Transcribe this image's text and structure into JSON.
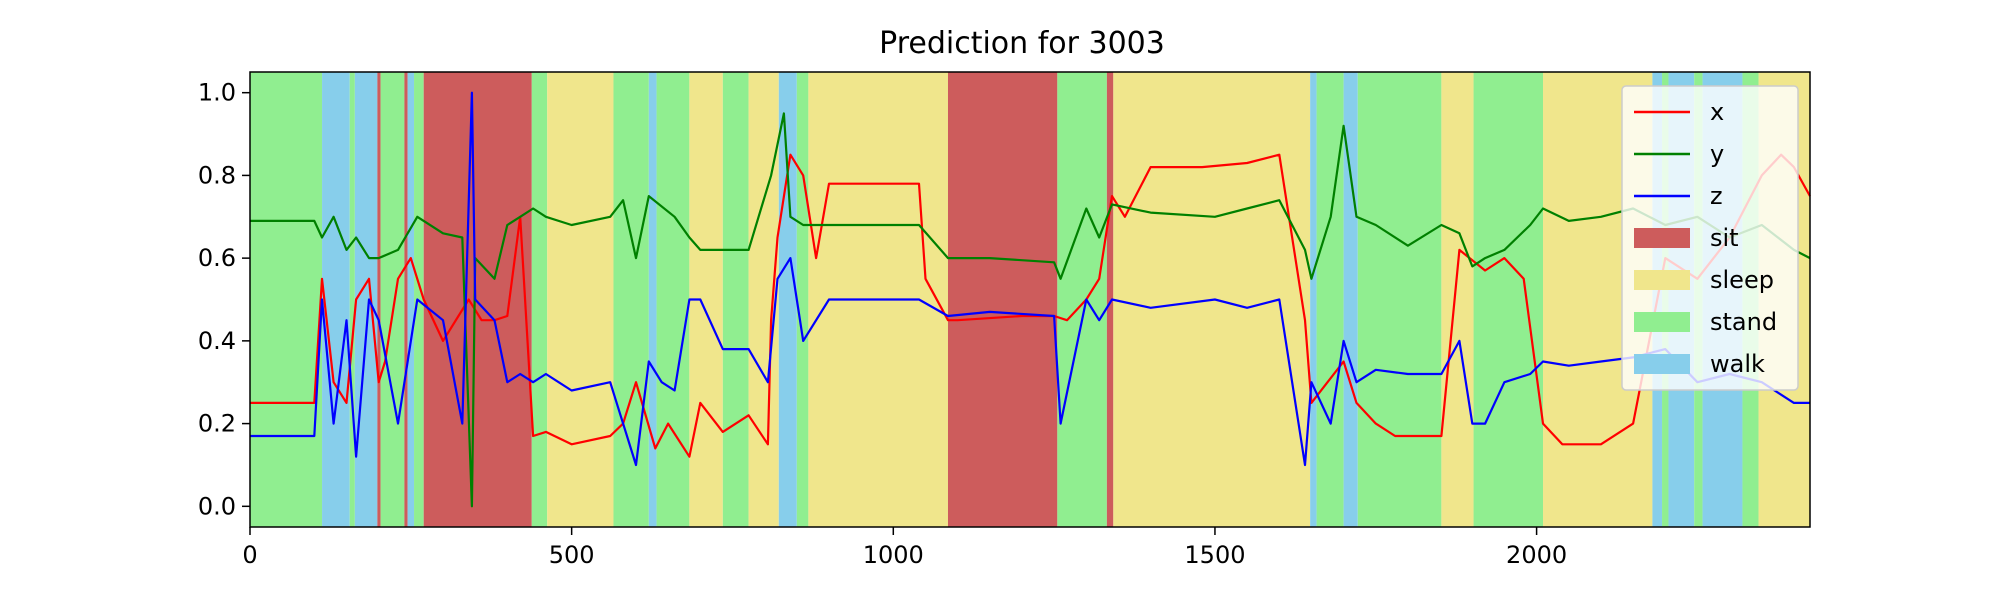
{
  "chart_data": {
    "type": "line",
    "title": "Prediction for 3003",
    "xlabel": "",
    "ylabel": "",
    "xlim": [
      0,
      2425
    ],
    "ylim": [
      -0.05,
      1.05
    ],
    "x_ticks": [
      0,
      500,
      1000,
      1500,
      2000
    ],
    "y_ticks": [
      0.0,
      0.2,
      0.4,
      0.6,
      0.8,
      1.0
    ],
    "x_tick_labels": [
      "0",
      "500",
      "1000",
      "1500",
      "2000"
    ],
    "y_tick_labels": [
      "0.0",
      "0.2",
      "0.4",
      "0.6",
      "0.8",
      "1.0"
    ],
    "grid": false,
    "legend_position": "top-right",
    "legend": [
      "x",
      "y",
      "z",
      "sit",
      "sleep",
      "stand",
      "walk"
    ],
    "class_colors": {
      "sit": "#cd5c5c",
      "sleep": "#f0e68c",
      "stand": "#90ee90",
      "walk": "#87ceeb"
    },
    "segments": [
      {
        "start": 0,
        "end": 112,
        "label": "stand"
      },
      {
        "start": 112,
        "end": 155,
        "label": "walk"
      },
      {
        "start": 155,
        "end": 163,
        "label": "stand"
      },
      {
        "start": 163,
        "end": 198,
        "label": "walk"
      },
      {
        "start": 198,
        "end": 203,
        "label": "sit"
      },
      {
        "start": 203,
        "end": 240,
        "label": "stand"
      },
      {
        "start": 240,
        "end": 245,
        "label": "sit"
      },
      {
        "start": 245,
        "end": 255,
        "label": "walk"
      },
      {
        "start": 255,
        "end": 270,
        "label": "stand"
      },
      {
        "start": 270,
        "end": 438,
        "label": "sit"
      },
      {
        "start": 438,
        "end": 462,
        "label": "stand"
      },
      {
        "start": 462,
        "end": 565,
        "label": "sleep"
      },
      {
        "start": 565,
        "end": 620,
        "label": "stand"
      },
      {
        "start": 620,
        "end": 632,
        "label": "walk"
      },
      {
        "start": 632,
        "end": 683,
        "label": "stand"
      },
      {
        "start": 683,
        "end": 735,
        "label": "sleep"
      },
      {
        "start": 735,
        "end": 775,
        "label": "stand"
      },
      {
        "start": 775,
        "end": 822,
        "label": "sleep"
      },
      {
        "start": 822,
        "end": 850,
        "label": "walk"
      },
      {
        "start": 850,
        "end": 868,
        "label": "stand"
      },
      {
        "start": 868,
        "end": 1085,
        "label": "sleep"
      },
      {
        "start": 1085,
        "end": 1255,
        "label": "sit"
      },
      {
        "start": 1255,
        "end": 1332,
        "label": "stand"
      },
      {
        "start": 1332,
        "end": 1342,
        "label": "sit"
      },
      {
        "start": 1342,
        "end": 1648,
        "label": "sleep"
      },
      {
        "start": 1648,
        "end": 1658,
        "label": "walk"
      },
      {
        "start": 1658,
        "end": 1700,
        "label": "stand"
      },
      {
        "start": 1700,
        "end": 1722,
        "label": "walk"
      },
      {
        "start": 1722,
        "end": 1852,
        "label": "stand"
      },
      {
        "start": 1852,
        "end": 1902,
        "label": "sleep"
      },
      {
        "start": 1902,
        "end": 2010,
        "label": "stand"
      },
      {
        "start": 2010,
        "end": 2180,
        "label": "sleep"
      },
      {
        "start": 2180,
        "end": 2195,
        "label": "walk"
      },
      {
        "start": 2195,
        "end": 2205,
        "label": "stand"
      },
      {
        "start": 2205,
        "end": 2245,
        "label": "walk"
      },
      {
        "start": 2245,
        "end": 2258,
        "label": "stand"
      },
      {
        "start": 2258,
        "end": 2320,
        "label": "walk"
      },
      {
        "start": 2320,
        "end": 2345,
        "label": "stand"
      },
      {
        "start": 2345,
        "end": 2425,
        "label": "sleep"
      }
    ],
    "series": [
      {
        "name": "x",
        "color": "#ff0000",
        "x": [
          0,
          100,
          112,
          130,
          150,
          165,
          185,
          200,
          210,
          230,
          250,
          270,
          300,
          340,
          360,
          380,
          400,
          420,
          440,
          460,
          500,
          560,
          580,
          600,
          630,
          650,
          683,
          700,
          735,
          775,
          805,
          810,
          820,
          840,
          860,
          880,
          900,
          960,
          1040,
          1050,
          1085,
          1100,
          1200,
          1250,
          1270,
          1300,
          1320,
          1340,
          1360,
          1400,
          1480,
          1550,
          1600,
          1640,
          1650,
          1700,
          1720,
          1750,
          1780,
          1852,
          1880,
          1920,
          1950,
          1980,
          2010,
          2040,
          2100,
          2150,
          2200,
          2250,
          2300,
          2350,
          2380,
          2400,
          2425
        ],
        "values": [
          0.25,
          0.25,
          0.55,
          0.3,
          0.25,
          0.5,
          0.55,
          0.3,
          0.35,
          0.55,
          0.6,
          0.5,
          0.4,
          0.5,
          0.45,
          0.45,
          0.46,
          0.7,
          0.17,
          0.18,
          0.15,
          0.17,
          0.2,
          0.3,
          0.14,
          0.2,
          0.12,
          0.25,
          0.18,
          0.22,
          0.15,
          0.45,
          0.65,
          0.85,
          0.8,
          0.6,
          0.78,
          0.78,
          0.78,
          0.55,
          0.45,
          0.45,
          0.46,
          0.46,
          0.45,
          0.5,
          0.55,
          0.75,
          0.7,
          0.82,
          0.82,
          0.83,
          0.85,
          0.45,
          0.25,
          0.35,
          0.25,
          0.2,
          0.17,
          0.17,
          0.62,
          0.57,
          0.6,
          0.55,
          0.2,
          0.15,
          0.15,
          0.2,
          0.6,
          0.55,
          0.65,
          0.8,
          0.85,
          0.82,
          0.75
        ]
      },
      {
        "name": "y",
        "color": "#008000",
        "x": [
          0,
          100,
          112,
          130,
          150,
          165,
          185,
          200,
          230,
          260,
          300,
          330,
          345,
          350,
          380,
          400,
          420,
          440,
          460,
          500,
          560,
          580,
          600,
          620,
          660,
          683,
          700,
          735,
          775,
          810,
          830,
          840,
          860,
          900,
          960,
          1040,
          1085,
          1150,
          1250,
          1260,
          1300,
          1320,
          1340,
          1400,
          1500,
          1550,
          1600,
          1640,
          1650,
          1680,
          1700,
          1720,
          1750,
          1800,
          1852,
          1880,
          1900,
          1920,
          1950,
          1990,
          2010,
          2050,
          2100,
          2150,
          2200,
          2250,
          2300,
          2350,
          2400,
          2425
        ],
        "values": [
          0.69,
          0.69,
          0.65,
          0.7,
          0.62,
          0.65,
          0.6,
          0.6,
          0.62,
          0.7,
          0.66,
          0.65,
          0.0,
          0.6,
          0.55,
          0.68,
          0.7,
          0.72,
          0.7,
          0.68,
          0.7,
          0.74,
          0.6,
          0.75,
          0.7,
          0.65,
          0.62,
          0.62,
          0.62,
          0.8,
          0.95,
          0.7,
          0.68,
          0.68,
          0.68,
          0.68,
          0.6,
          0.6,
          0.59,
          0.55,
          0.72,
          0.65,
          0.73,
          0.71,
          0.7,
          0.72,
          0.74,
          0.62,
          0.55,
          0.7,
          0.92,
          0.7,
          0.68,
          0.63,
          0.68,
          0.66,
          0.58,
          0.6,
          0.62,
          0.68,
          0.72,
          0.69,
          0.7,
          0.72,
          0.68,
          0.7,
          0.65,
          0.68,
          0.62,
          0.6
        ]
      },
      {
        "name": "z",
        "color": "#0000ff",
        "x": [
          0,
          100,
          112,
          130,
          150,
          165,
          185,
          200,
          230,
          260,
          300,
          330,
          345,
          350,
          380,
          400,
          420,
          440,
          460,
          500,
          560,
          580,
          600,
          620,
          640,
          660,
          683,
          700,
          735,
          775,
          805,
          820,
          840,
          860,
          900,
          960,
          1040,
          1085,
          1150,
          1250,
          1260,
          1300,
          1320,
          1340,
          1400,
          1500,
          1550,
          1600,
          1640,
          1650,
          1680,
          1700,
          1720,
          1750,
          1800,
          1852,
          1880,
          1900,
          1920,
          1950,
          1990,
          2010,
          2050,
          2100,
          2150,
          2200,
          2250,
          2300,
          2350,
          2400,
          2425
        ],
        "values": [
          0.17,
          0.17,
          0.5,
          0.2,
          0.45,
          0.12,
          0.5,
          0.45,
          0.2,
          0.5,
          0.45,
          0.2,
          1.0,
          0.5,
          0.45,
          0.3,
          0.32,
          0.3,
          0.32,
          0.28,
          0.3,
          0.2,
          0.1,
          0.35,
          0.3,
          0.28,
          0.5,
          0.5,
          0.38,
          0.38,
          0.3,
          0.55,
          0.6,
          0.4,
          0.5,
          0.5,
          0.5,
          0.46,
          0.47,
          0.46,
          0.2,
          0.5,
          0.45,
          0.5,
          0.48,
          0.5,
          0.48,
          0.5,
          0.1,
          0.3,
          0.2,
          0.4,
          0.3,
          0.33,
          0.32,
          0.32,
          0.4,
          0.2,
          0.2,
          0.3,
          0.32,
          0.35,
          0.34,
          0.35,
          0.36,
          0.38,
          0.3,
          0.32,
          0.3,
          0.25,
          0.25
        ]
      }
    ]
  }
}
